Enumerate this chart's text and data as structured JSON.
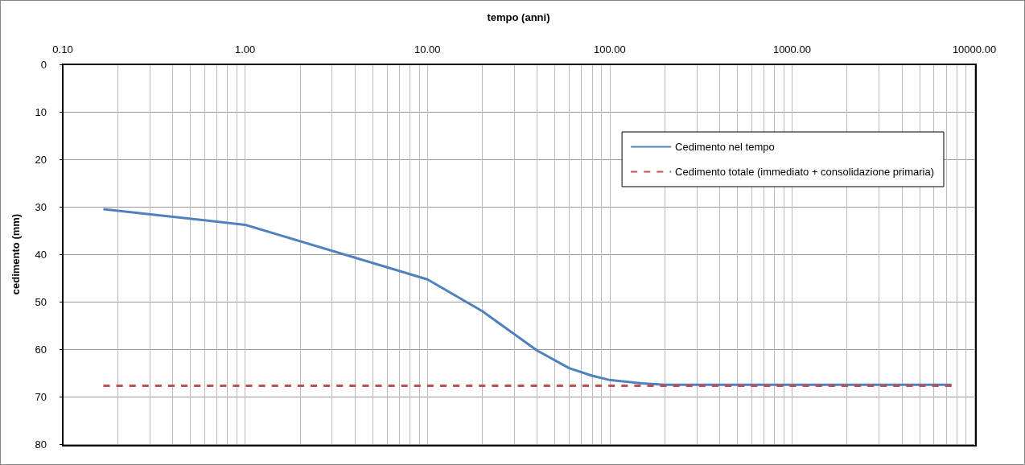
{
  "chart_data": {
    "type": "line",
    "xlabel": "tempo (anni)",
    "ylabel": "cedimento (mm)",
    "log": "x",
    "xlim": [
      0.1,
      10000
    ],
    "xticks": [
      {
        "value": 0.1,
        "label": "0.10"
      },
      {
        "value": 1,
        "label": "1.00"
      },
      {
        "value": 10,
        "label": "10.00"
      },
      {
        "value": 100,
        "label": "100.00"
      },
      {
        "value": 1000,
        "label": "1000.00"
      },
      {
        "value": 10000,
        "label": "10000.00"
      }
    ],
    "ylim": [
      80,
      0
    ],
    "yticks": [
      0,
      10,
      20,
      30,
      40,
      50,
      60,
      70,
      80
    ],
    "grid": true,
    "legend": "top right",
    "marker": "none",
    "series": [
      {
        "name": "Cedimento nel tempo",
        "color": "#4f81bd",
        "line_style": "solid",
        "x": [
          0.167,
          1,
          10,
          20,
          40,
          60,
          80,
          100,
          150,
          200,
          500,
          1000,
          2000,
          5000,
          7500
        ],
        "values": [
          30.5,
          33.8,
          45.3,
          52,
          60.3,
          64,
          65.6,
          66.5,
          67.2,
          67.5,
          67.5,
          67.5,
          67.5,
          67.5,
          67.5
        ]
      },
      {
        "name": "Cedimento totale (immediato + consolidazione primaria)",
        "color": "#c0504d",
        "line_style": "dashed",
        "x": [
          0.167,
          7500
        ],
        "values": [
          67.7,
          67.7
        ]
      }
    ]
  }
}
